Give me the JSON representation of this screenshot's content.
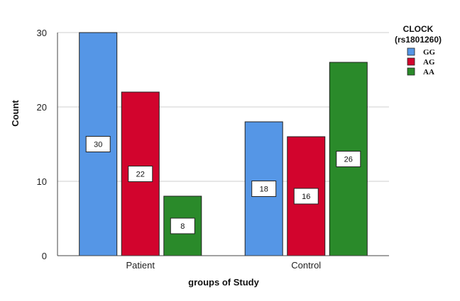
{
  "chart_data": {
    "type": "bar",
    "xlabel": "groups of Study",
    "ylabel": "Count",
    "ylim": [
      0,
      30
    ],
    "yticks": [
      0,
      10,
      20,
      30
    ],
    "grid": true,
    "legend_position": "top-right",
    "legend_title_line1": "CLOCK",
    "legend_title_line2": "(rs1801260)",
    "categories": [
      "Patient",
      "Control"
    ],
    "series": [
      {
        "name": "GG",
        "color": "#5596e6",
        "values": [
          30,
          18
        ]
      },
      {
        "name": "AG",
        "color": "#d2042d",
        "values": [
          22,
          16
        ]
      },
      {
        "name": "AA",
        "color": "#2a8a2a",
        "values": [
          8,
          26
        ]
      }
    ]
  }
}
